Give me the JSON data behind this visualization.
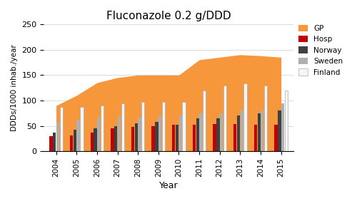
{
  "title": "Fluconazole 0.2 g/DDD",
  "xlabel": "Year",
  "ylabel": "DDDs/1000 inhab./year",
  "years": [
    2004,
    2005,
    2006,
    2007,
    2008,
    2009,
    2010,
    2011,
    2012,
    2013,
    2014,
    2015
  ],
  "GP": [
    90,
    110,
    135,
    145,
    150,
    150,
    150,
    180,
    185,
    190,
    188,
    185
  ],
  "Hosp": [
    30,
    32,
    37,
    45,
    48,
    49,
    52,
    53,
    54,
    54,
    53,
    53
  ],
  "Norway": [
    37,
    42,
    45,
    50,
    55,
    58,
    53,
    65,
    65,
    70,
    75,
    80
  ],
  "Sweden": [
    57,
    62,
    66,
    68,
    67,
    70,
    70,
    75,
    75,
    80,
    80,
    95
  ],
  "Finland": [
    88,
    87,
    90,
    94,
    97,
    97,
    97,
    120,
    130,
    133,
    130,
    120
  ],
  "color_GP": "#f5973a",
  "color_Hosp": "#c00000",
  "color_Norway": "#404040",
  "color_Sweden": "#b0b0b0",
  "color_Finland": "#f5f5f5",
  "color_Finland_edge": "#aaaaaa",
  "ylim": [
    0,
    250
  ],
  "yticks": [
    0,
    50,
    100,
    150,
    200,
    250
  ],
  "bg_color": "#ffffff",
  "figsize": [
    5.0,
    2.82
  ],
  "dpi": 100
}
